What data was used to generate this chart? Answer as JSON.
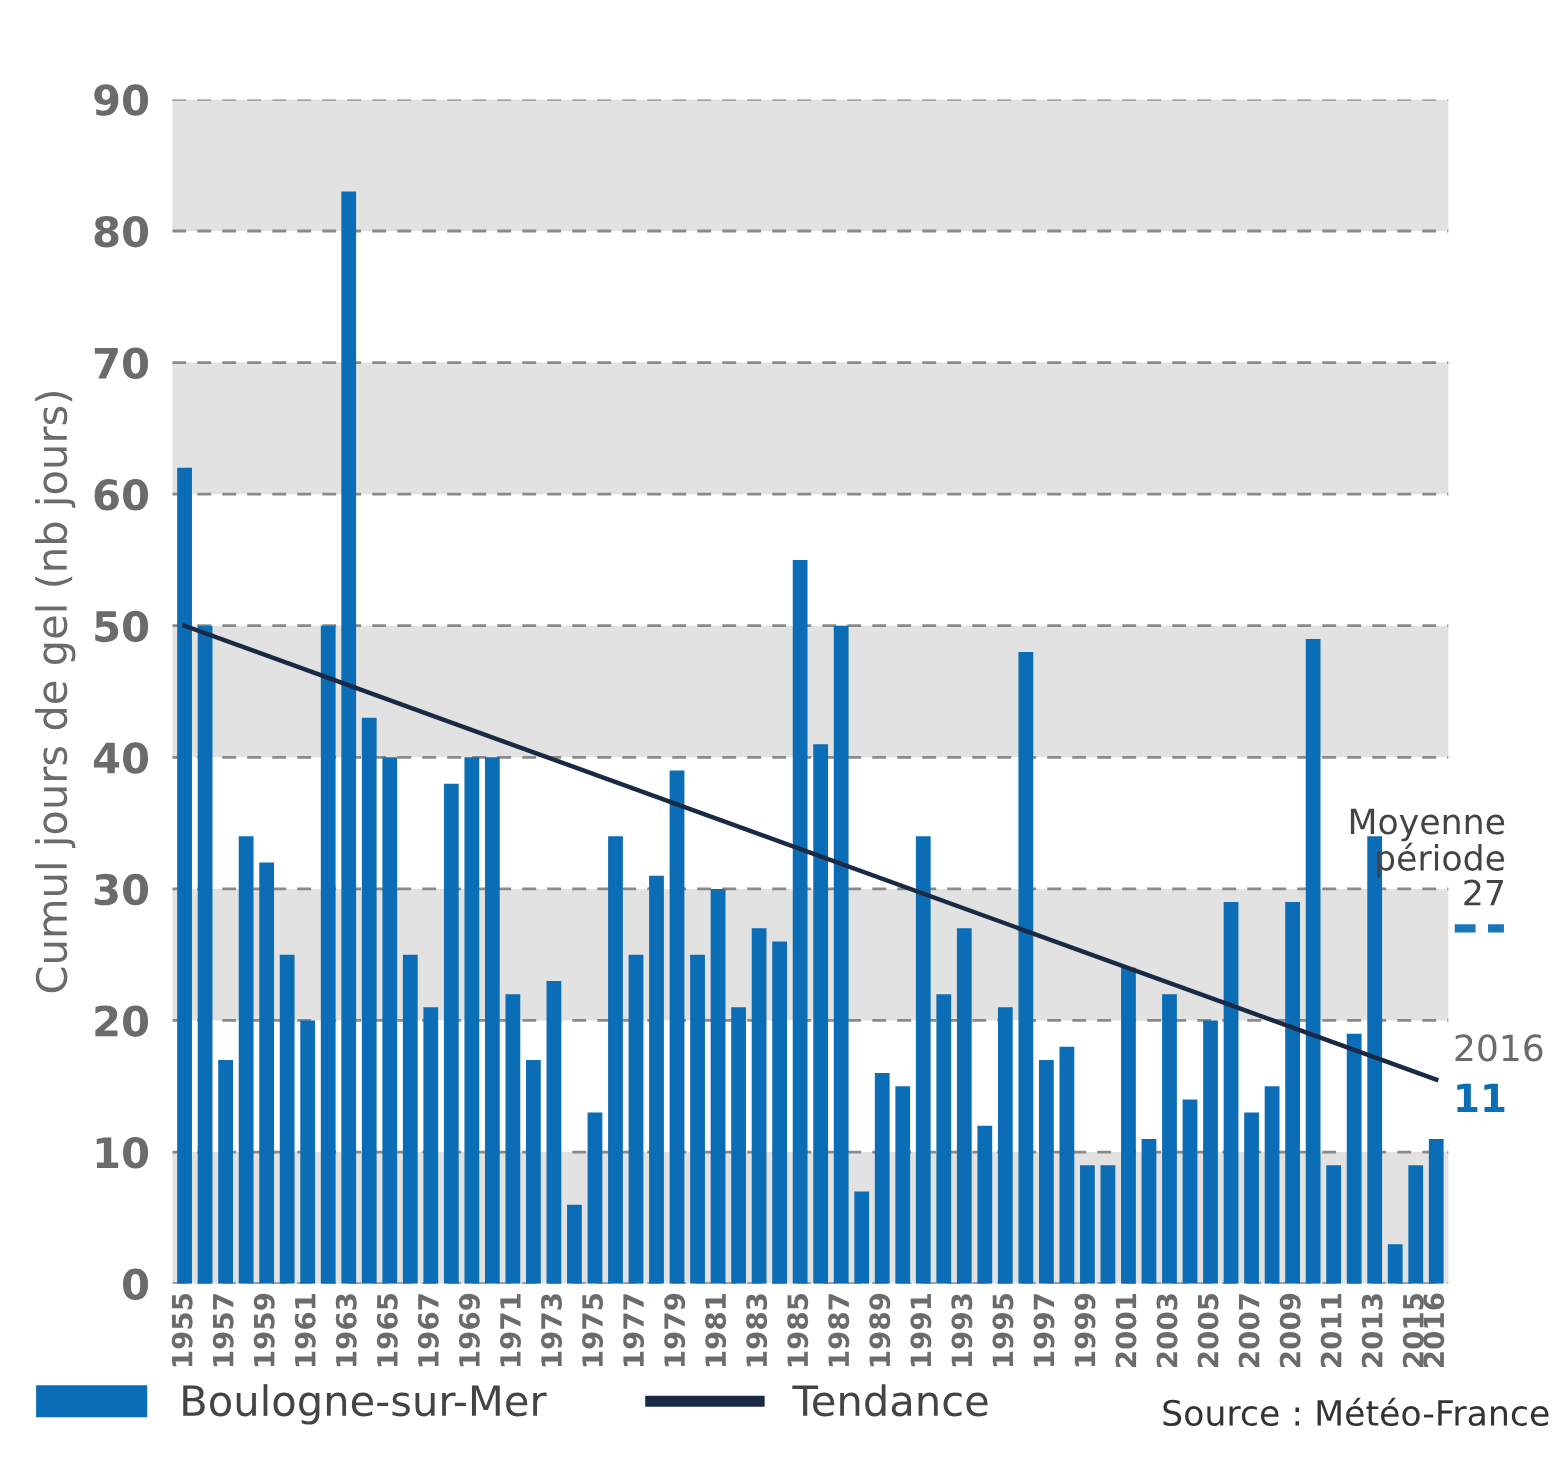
{
  "chart_data": {
    "type": "bar",
    "ylabel": "Cumul jours de gel (nb jours)",
    "categories": [
      "1955",
      null,
      "1957",
      null,
      "1959",
      null,
      "1961",
      null,
      "1963",
      null,
      "1965",
      null,
      "1967",
      null,
      "1969",
      null,
      "1971",
      null,
      "1973",
      null,
      "1975",
      null,
      "1977",
      null,
      "1979",
      null,
      "1981",
      null,
      "1983",
      null,
      "1985",
      null,
      "1987",
      null,
      "1989",
      null,
      "1991",
      null,
      "1993",
      null,
      "1995",
      null,
      "1997",
      null,
      "1999",
      null,
      "2001",
      null,
      "2003",
      null,
      "2005",
      null,
      "2007",
      null,
      "2009",
      null,
      "2011",
      null,
      "2013",
      null,
      "2015",
      "2016"
    ],
    "series": [
      {
        "name": "Boulogne-sur-Mer",
        "color": "#0a6db5",
        "values": [
          62,
          50,
          17,
          34,
          32,
          25,
          20,
          50,
          83,
          43,
          40,
          25,
          21,
          38,
          40,
          40,
          22,
          17,
          23,
          6,
          13,
          34,
          25,
          31,
          39,
          25,
          30,
          21,
          27,
          26,
          55,
          41,
          50,
          7,
          16,
          15,
          34,
          22,
          27,
          12,
          21,
          48,
          17,
          18,
          9,
          9,
          24,
          11,
          22,
          14,
          20,
          29,
          13,
          15,
          29,
          49,
          9,
          19,
          34,
          3,
          9,
          11
        ]
      },
      {
        "name": "Tendance",
        "type": "line",
        "color": "#1a2a44",
        "values": [
          50,
          null,
          null,
          null,
          null,
          null,
          null,
          null,
          null,
          null,
          null,
          null,
          null,
          null,
          null,
          null,
          null,
          null,
          null,
          null,
          null,
          null,
          null,
          null,
          null,
          null,
          null,
          null,
          null,
          null,
          null,
          null,
          null,
          null,
          null,
          null,
          null,
          null,
          null,
          null,
          null,
          null,
          null,
          null,
          null,
          null,
          null,
          null,
          null,
          null,
          null,
          null,
          null,
          null,
          null,
          null,
          null,
          null,
          null,
          null,
          null,
          15.5
        ]
      }
    ],
    "ylim": [
      0,
      90
    ],
    "yticks": [
      0,
      10,
      20,
      30,
      40,
      50,
      60,
      70,
      80,
      90
    ],
    "grid": "y",
    "legend": "bottom",
    "bands": [
      {
        "axis": "y",
        "from": 0,
        "to": 10,
        "color": "#e2e2e2"
      },
      {
        "axis": "y",
        "from": 20,
        "to": 30,
        "color": "#e2e2e2"
      },
      {
        "axis": "y",
        "from": 40,
        "to": 50,
        "color": "#e2e2e2"
      },
      {
        "axis": "y",
        "from": 60,
        "to": 70,
        "color": "#e2e2e2"
      },
      {
        "axis": "y",
        "from": 80,
        "to": 90,
        "color": "#e2e2e2"
      }
    ],
    "ref_lines": [
      {
        "axis": "y",
        "value": 27,
        "label": "Moyenne\npériode\n27",
        "color": "#1a75bb",
        "line_style": "dashed"
      }
    ],
    "annotations": [
      {
        "text": "2016",
        "x": "2016",
        "y": 15.5
      },
      {
        "text": "11",
        "x": "2016",
        "y": 15.5
      },
      "Source : Météo-France"
    ]
  }
}
